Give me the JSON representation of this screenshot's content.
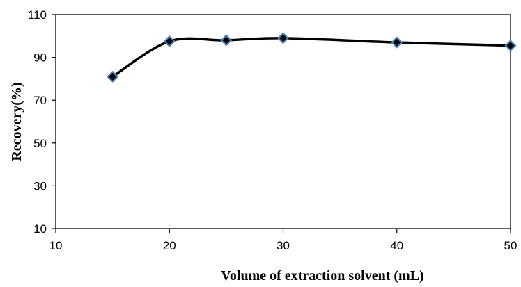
{
  "chart_data": {
    "type": "line",
    "title": "",
    "xlabel": "Volume of extraction solvent (mL)",
    "ylabel": "Recovery(%)",
    "xlim": [
      10,
      50
    ],
    "ylim": [
      10,
      110
    ],
    "x_ticks": [
      "10",
      "20",
      "30",
      "40",
      "50"
    ],
    "y_ticks": [
      "10",
      "30",
      "50",
      "70",
      "90",
      "110"
    ],
    "grid": false,
    "legend": "none",
    "series": [
      {
        "x": [
          15,
          20,
          25,
          30,
          40,
          50
        ],
        "y": [
          81,
          97.5,
          98,
          99,
          97,
          95.5
        ],
        "line_color": "#000000",
        "marker_fill": "#000000",
        "marker_edge": "#4f81bd",
        "marker": "diamond",
        "smooth": true
      }
    ]
  }
}
